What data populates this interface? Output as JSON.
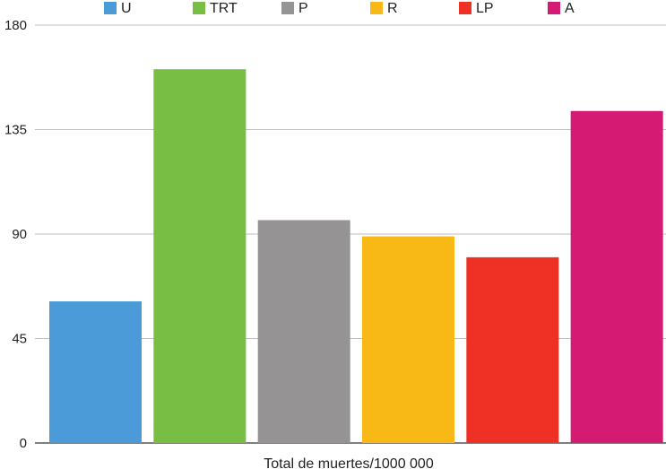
{
  "chart_data": {
    "type": "bar",
    "categories": [
      "U",
      "TRT",
      "P",
      "R",
      "LP",
      "A"
    ],
    "series": [
      {
        "values": [
          61,
          161,
          96,
          89,
          80,
          143
        ],
        "colors": [
          "#4A9BD7",
          "#78BE45",
          "#959394",
          "#F8B816",
          "#EE3124",
          "#D51A73"
        ]
      }
    ],
    "legend": {
      "position": "top",
      "entries": [
        {
          "label": "U",
          "color": "#4A9BD7"
        },
        {
          "label": "TRT",
          "color": "#78BE45"
        },
        {
          "label": "P",
          "color": "#959394"
        },
        {
          "label": "R",
          "color": "#F8B816"
        },
        {
          "label": "LP",
          "color": "#EE3124"
        },
        {
          "label": "A",
          "color": "#D51A73"
        }
      ]
    },
    "title": "",
    "xlabel": "Total de muertes/1000 000",
    "ylabel": "",
    "ylim": [
      0,
      180
    ],
    "yticks": [
      "0",
      "45",
      "90",
      "135",
      "180"
    ],
    "grid": true
  }
}
